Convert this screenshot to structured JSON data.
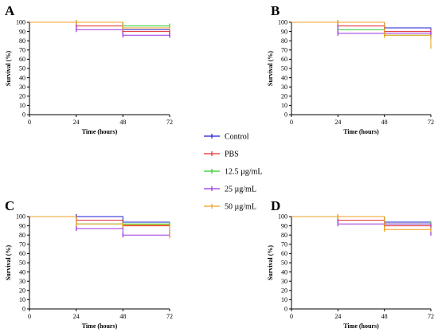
{
  "legend": {
    "items": [
      {
        "label": "Control",
        "color": "#1f1fd1"
      },
      {
        "label": "PBS",
        "color": "#e8272b"
      },
      {
        "label": "12.5 µg/mL",
        "color": "#2bcc2b"
      },
      {
        "label": "25 µg/mL",
        "color": "#9b30e0"
      },
      {
        "label": "50 µg/mL",
        "color": "#f0a020"
      }
    ]
  },
  "chart_data": [
    {
      "type": "line",
      "panel": "A",
      "xlabel": "Time (hours)",
      "ylabel": "Survival (%)",
      "xlim": [
        0,
        72
      ],
      "ylim": [
        0,
        100
      ],
      "xticks": [
        0,
        24,
        48,
        72
      ],
      "yticks": [
        0,
        10,
        20,
        30,
        40,
        50,
        60,
        70,
        80,
        90,
        100
      ],
      "series": [
        {
          "name": "Control",
          "x": [
            0,
            24,
            48,
            72
          ],
          "y": [
            100,
            100,
            92,
            86
          ]
        },
        {
          "name": "PBS",
          "x": [
            0,
            24,
            48,
            72
          ],
          "y": [
            100,
            96,
            90,
            90
          ]
        },
        {
          "name": "12.5 µg/mL",
          "x": [
            0,
            24,
            48,
            72
          ],
          "y": [
            100,
            100,
            96,
            96
          ]
        },
        {
          "name": "25 µg/mL",
          "x": [
            0,
            24,
            48,
            72
          ],
          "y": [
            100,
            92,
            86,
            86
          ]
        },
        {
          "name": "50 µg/mL",
          "x": [
            0,
            24,
            48,
            72
          ],
          "y": [
            100,
            100,
            94,
            94
          ]
        }
      ]
    },
    {
      "type": "line",
      "panel": "B",
      "xlabel": "Time (hours)",
      "ylabel": "Survival (%)",
      "xlim": [
        0,
        72
      ],
      "ylim": [
        0,
        100
      ],
      "xticks": [
        0,
        24,
        48,
        72
      ],
      "yticks": [
        0,
        10,
        20,
        30,
        40,
        50,
        60,
        70,
        80,
        90,
        100
      ],
      "series": [
        {
          "name": "Control",
          "x": [
            0,
            24,
            48,
            72
          ],
          "y": [
            100,
            100,
            94,
            86
          ]
        },
        {
          "name": "PBS",
          "x": [
            0,
            24,
            48,
            72
          ],
          "y": [
            100,
            96,
            90,
            90
          ]
        },
        {
          "name": "12.5 µg/mL",
          "x": [
            0,
            24,
            48,
            72
          ],
          "y": [
            100,
            92,
            86,
            84
          ]
        },
        {
          "name": "25 µg/mL",
          "x": [
            0,
            24,
            48,
            72
          ],
          "y": [
            100,
            88,
            88,
            88
          ]
        },
        {
          "name": "50 µg/mL",
          "x": [
            0,
            24,
            48,
            72
          ],
          "y": [
            100,
            100,
            86,
            74
          ]
        }
      ]
    },
    {
      "type": "line",
      "panel": "C",
      "xlabel": "Time (hours)",
      "ylabel": "Survival (%)",
      "xlim": [
        0,
        72
      ],
      "ylim": [
        0,
        100
      ],
      "xticks": [
        0,
        24,
        48,
        72
      ],
      "yticks": [
        0,
        10,
        20,
        30,
        40,
        50,
        60,
        70,
        80,
        90,
        100
      ],
      "series": [
        {
          "name": "Control",
          "x": [
            0,
            24,
            48,
            72
          ],
          "y": [
            100,
            100,
            94,
            84
          ]
        },
        {
          "name": "PBS",
          "x": [
            0,
            24,
            48,
            72
          ],
          "y": [
            100,
            96,
            90,
            90
          ]
        },
        {
          "name": "12.5 µg/mL",
          "x": [
            0,
            24,
            48,
            72
          ],
          "y": [
            100,
            92,
            92,
            92
          ]
        },
        {
          "name": "25 µg/mL",
          "x": [
            0,
            24,
            48,
            72
          ],
          "y": [
            100,
            87,
            80,
            80
          ]
        },
        {
          "name": "50 µg/mL",
          "x": [
            0,
            24,
            48,
            72
          ],
          "y": [
            100,
            92,
            91,
            79
          ]
        }
      ]
    },
    {
      "type": "line",
      "panel": "D",
      "xlabel": "Time (hours)",
      "ylabel": "Survival (%)",
      "xlim": [
        0,
        72
      ],
      "ylim": [
        0,
        100
      ],
      "xticks": [
        0,
        24,
        48,
        72
      ],
      "yticks": [
        0,
        10,
        20,
        30,
        40,
        50,
        60,
        70,
        80,
        90,
        100
      ],
      "series": [
        {
          "name": "Control",
          "x": [
            0,
            24,
            48,
            72
          ],
          "y": [
            100,
            100,
            94,
            88
          ]
        },
        {
          "name": "PBS",
          "x": [
            0,
            24,
            48,
            72
          ],
          "y": [
            100,
            96,
            90,
            90
          ]
        },
        {
          "name": "12.5 µg/mL",
          "x": [
            0,
            24,
            48,
            72
          ],
          "y": [
            100,
            100,
            92,
            92
          ]
        },
        {
          "name": "25 µg/mL",
          "x": [
            0,
            24,
            48,
            72
          ],
          "y": [
            100,
            92,
            92,
            82
          ]
        },
        {
          "name": "50 µg/mL",
          "x": [
            0,
            24,
            48,
            72
          ],
          "y": [
            100,
            100,
            86,
            86
          ]
        }
      ]
    }
  ]
}
